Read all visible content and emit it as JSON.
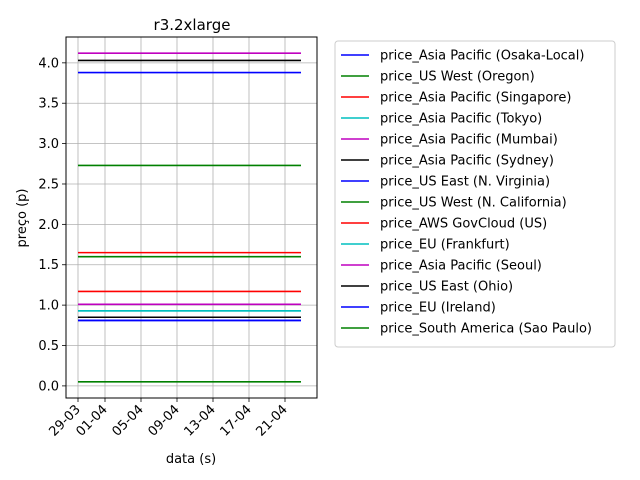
{
  "chart_data": {
    "type": "line",
    "title": "r3.2xlarge",
    "xlabel": "data (s)",
    "ylabel": "preço (p)",
    "x_tick_labels": [
      "29-03",
      "01-04",
      "05-04",
      "09-04",
      "13-04",
      "17-04",
      "21-04"
    ],
    "y_ticks": [
      0.0,
      0.5,
      1.0,
      1.5,
      2.0,
      2.5,
      3.0,
      3.5,
      4.0
    ],
    "y_tick_labels": [
      "0.0",
      "0.5",
      "1.0",
      "1.5",
      "2.0",
      "2.5",
      "3.0",
      "3.5",
      "4.0"
    ],
    "x_range": [
      "29-03",
      "23-04"
    ],
    "ylim": [
      -0.15,
      4.32
    ],
    "grid": true,
    "legend_position": "outside-right",
    "series": [
      {
        "name": "price_Asia Pacific (Osaka-Local)",
        "color": "#0000ff",
        "value": 3.88
      },
      {
        "name": "price_US West (Oregon)",
        "color": "#008000",
        "value": 2.73
      },
      {
        "name": "price_Asia Pacific (Singapore)",
        "color": "#ff0000",
        "value": 1.17
      },
      {
        "name": "price_Asia Pacific (Tokyo)",
        "color": "#00bfbf",
        "value": 0.93
      },
      {
        "name": "price_Asia Pacific (Mumbai)",
        "color": "#bf00bf",
        "value": 4.12
      },
      {
        "name": "price_Asia Pacific (Sydney)",
        "color": "#000000",
        "value": 4.03
      },
      {
        "name": "price_US East (N. Virginia)",
        "color": "#0000ff",
        "value": 0.81
      },
      {
        "name": "price_US West (N. California)",
        "color": "#008000",
        "value": 1.6
      },
      {
        "name": "price_AWS GovCloud (US)",
        "color": "#ff0000",
        "value": 1.65
      },
      {
        "name": "price_EU (Frankfurt)",
        "color": "#00bfbf",
        "value": 0.93
      },
      {
        "name": "price_Asia Pacific (Seoul)",
        "color": "#bf00bf",
        "value": 1.01
      },
      {
        "name": "price_US East (Ohio)",
        "color": "#000000",
        "value": 0.85
      },
      {
        "name": "price_EU (Ireland)",
        "color": "#0000ff",
        "value": 0.81
      },
      {
        "name": "price_South America (Sao Paulo)",
        "color": "#008000",
        "value": 0.05
      }
    ]
  }
}
